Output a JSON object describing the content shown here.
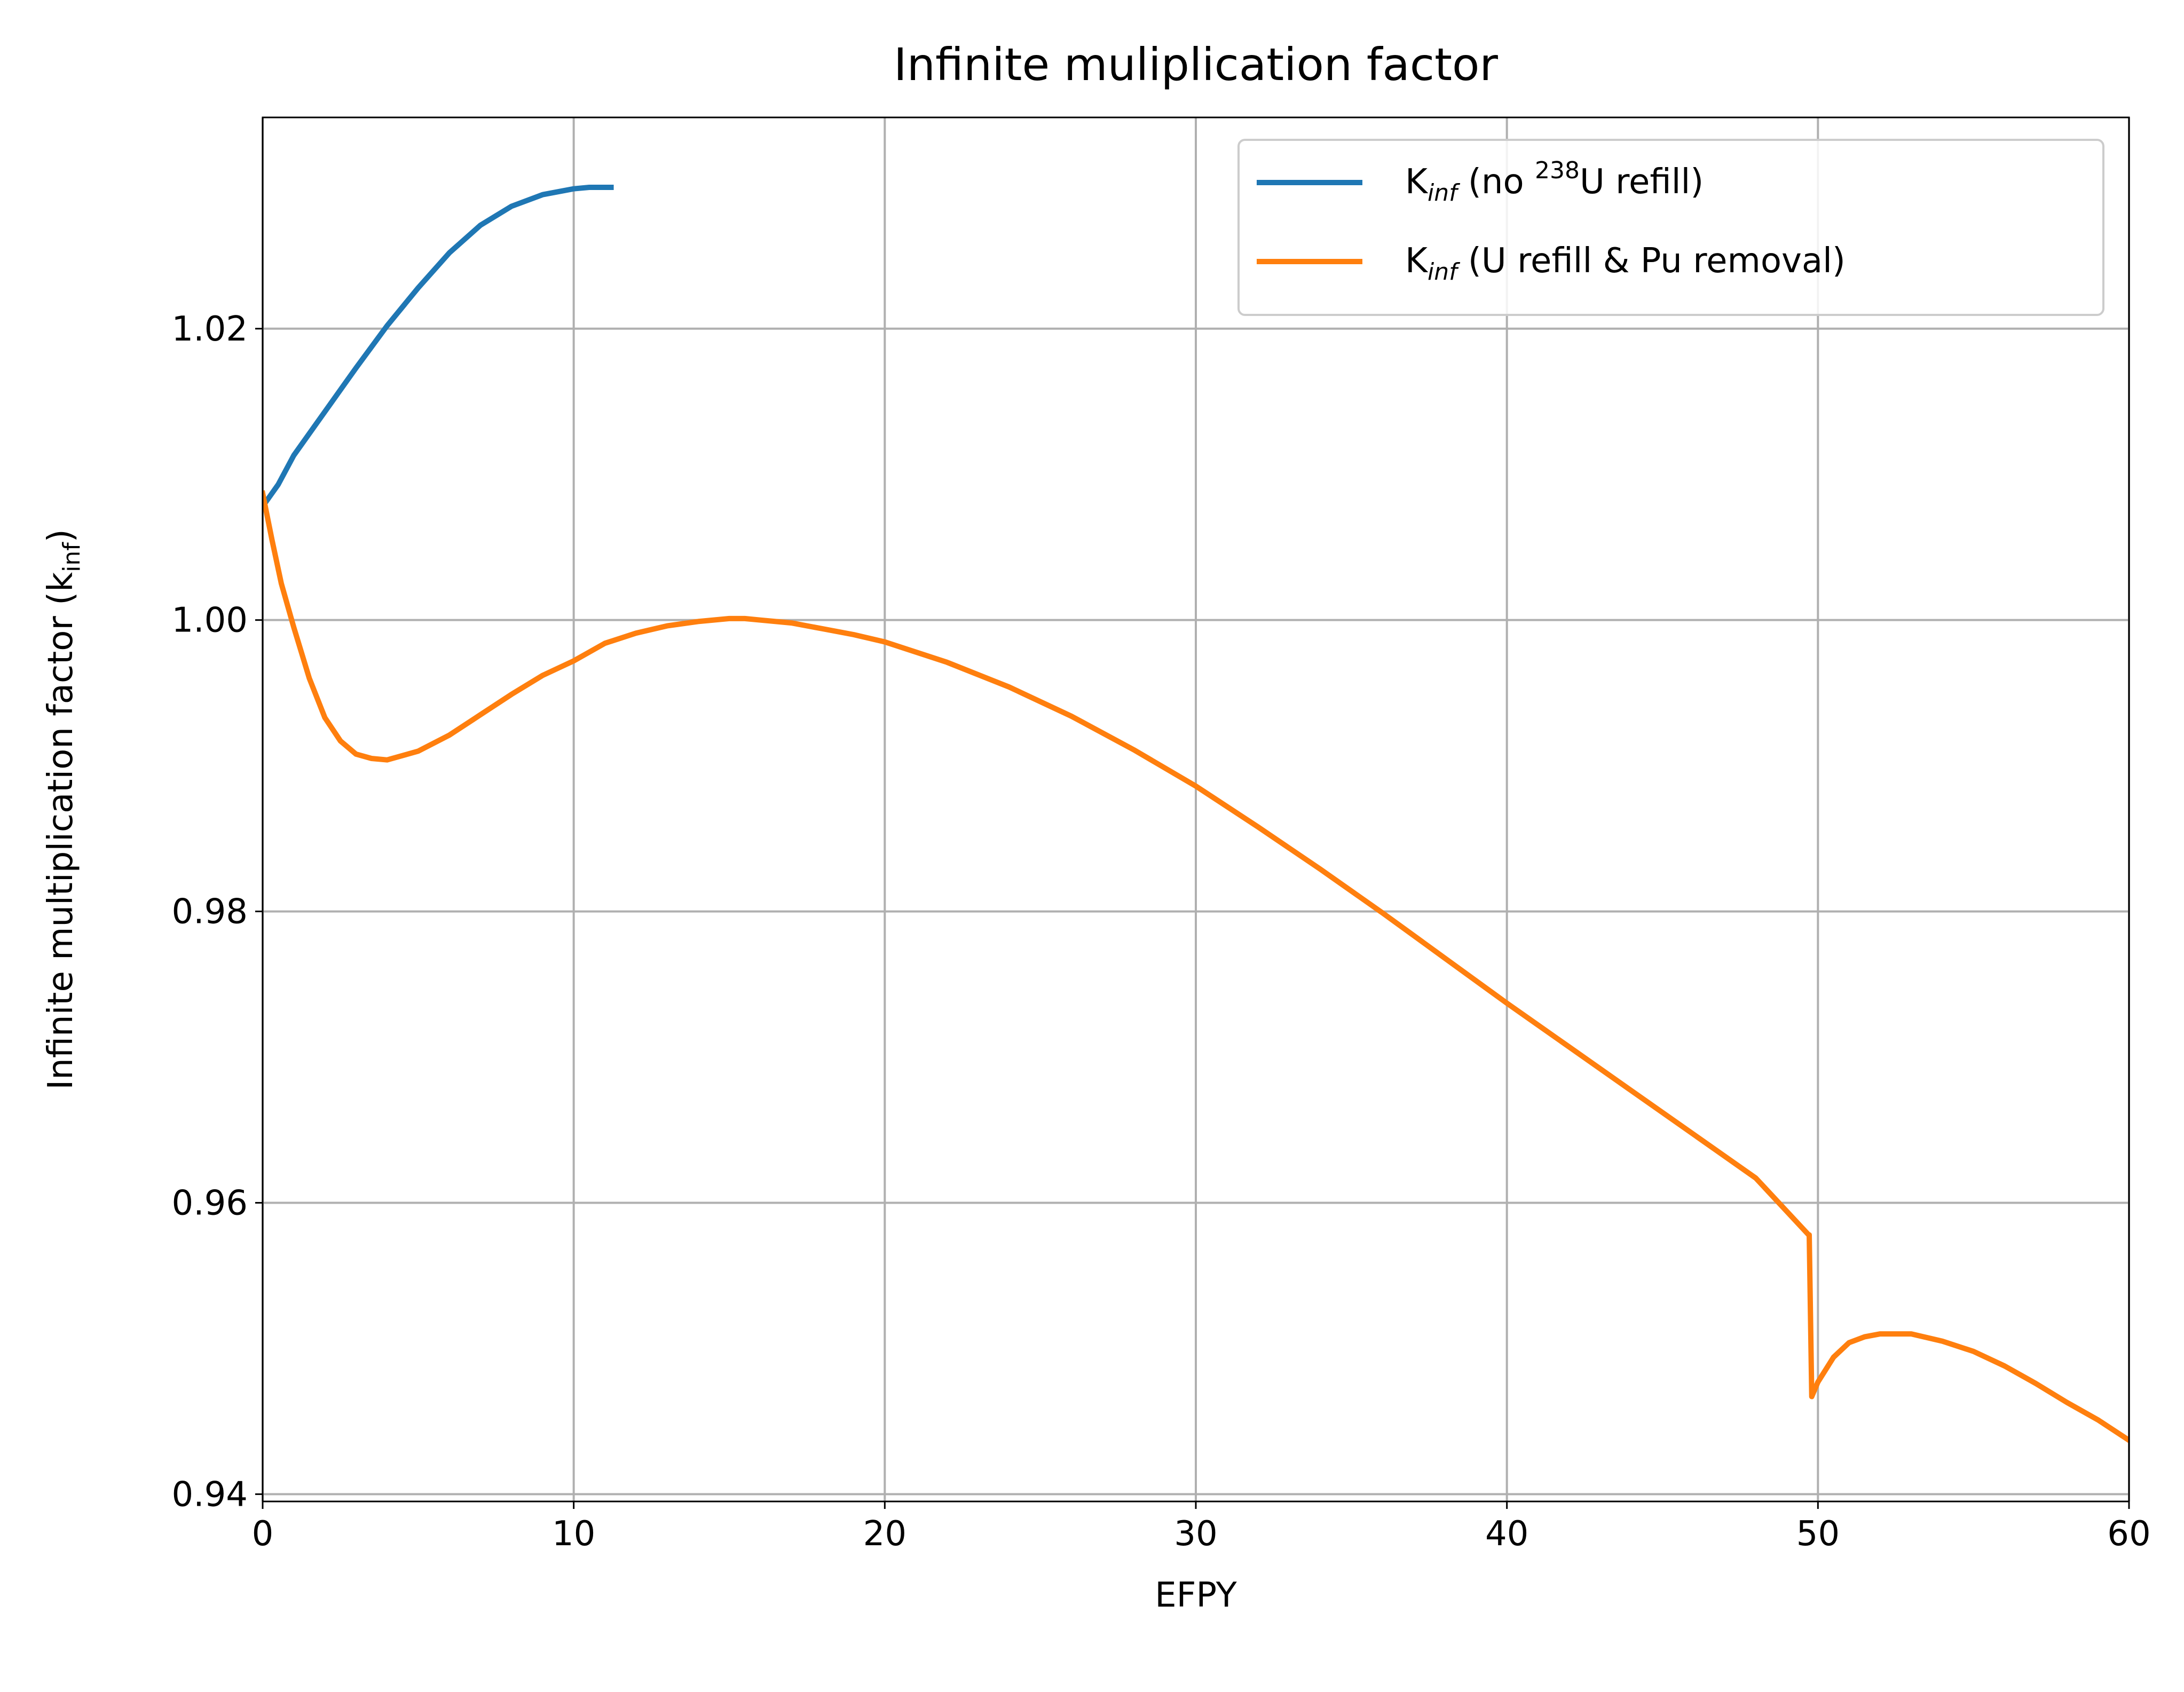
{
  "chart_data": {
    "type": "line",
    "title": "Infinite muliplication factor",
    "xlabel": "EFPY",
    "ylabel_main": "Infinite multiplication factor (k",
    "ylabel_sub": "inf",
    "ylabel_close": ")",
    "xlim": [
      0,
      60
    ],
    "ylim": [
      0.9395,
      1.0345
    ],
    "xticks": [
      0,
      10,
      20,
      30,
      40,
      50,
      60
    ],
    "xtick_labels": [
      "0",
      "10",
      "20",
      "30",
      "40",
      "50",
      "60"
    ],
    "yticks": [
      0.94,
      0.96,
      0.98,
      1.0,
      1.02
    ],
    "ytick_labels": [
      "0.94",
      "0.96",
      "0.98",
      "1.00",
      "1.02"
    ],
    "grid": true,
    "legend_position": "top-right",
    "series": [
      {
        "name": "K_inf (no 238U refill)",
        "legend": {
          "base": "K",
          "sub": "inf",
          "text1": " (no ",
          "sup": "238",
          "text2": "U refill)"
        },
        "color": "#1f77b4",
        "x": [
          0,
          0.5,
          1,
          2,
          3,
          4,
          5,
          6,
          7,
          8,
          9,
          10,
          10.5,
          11.2
        ],
        "y": [
          1.0078,
          1.0093,
          1.0113,
          1.0143,
          1.0173,
          1.0202,
          1.0228,
          1.0252,
          1.0271,
          1.0284,
          1.0292,
          1.0296,
          1.0297,
          1.0297
        ]
      },
      {
        "name": "K_inf (U refill & Pu removal)",
        "legend": {
          "base": "K",
          "sub": "inf",
          "text1": " (U refill & Pu removal)",
          "sup": "",
          "text2": ""
        },
        "color": "#ff7f0e",
        "x": [
          0,
          0.3,
          0.6,
          1,
          1.5,
          2,
          2.5,
          3,
          3.5,
          4,
          5,
          6,
          7,
          8,
          9,
          10,
          11,
          12,
          13,
          14,
          15,
          15.5,
          16,
          17,
          18,
          19,
          20,
          22,
          24,
          26,
          28,
          30,
          32,
          34,
          36,
          38,
          40,
          42,
          44,
          46,
          48,
          49.7,
          49.72,
          49.8,
          50,
          50.5,
          51,
          51.5,
          52,
          52.5,
          53,
          54,
          55,
          56,
          57,
          58,
          59,
          60
        ],
        "y": [
          1.0087,
          1.0055,
          1.0025,
          0.9995,
          0.996,
          0.9933,
          0.9917,
          0.9908,
          0.9905,
          0.9904,
          0.991,
          0.9921,
          0.9935,
          0.9949,
          0.9962,
          0.9972,
          0.9984,
          0.9991,
          0.9996,
          0.9999,
          1.0001,
          1.0001,
          1.0,
          0.9998,
          0.9994,
          0.999,
          0.9985,
          0.9971,
          0.9954,
          0.9934,
          0.9911,
          0.9886,
          0.9858,
          0.9829,
          0.9799,
          0.9768,
          0.9737,
          0.9707,
          0.9677,
          0.9647,
          0.9617,
          0.9578,
          0.9578,
          0.9467,
          0.9477,
          0.9494,
          0.9504,
          0.9508,
          0.951,
          0.951,
          0.951,
          0.9505,
          0.9498,
          0.9488,
          0.9476,
          0.9463,
          0.9451,
          0.9437
        ]
      }
    ]
  }
}
